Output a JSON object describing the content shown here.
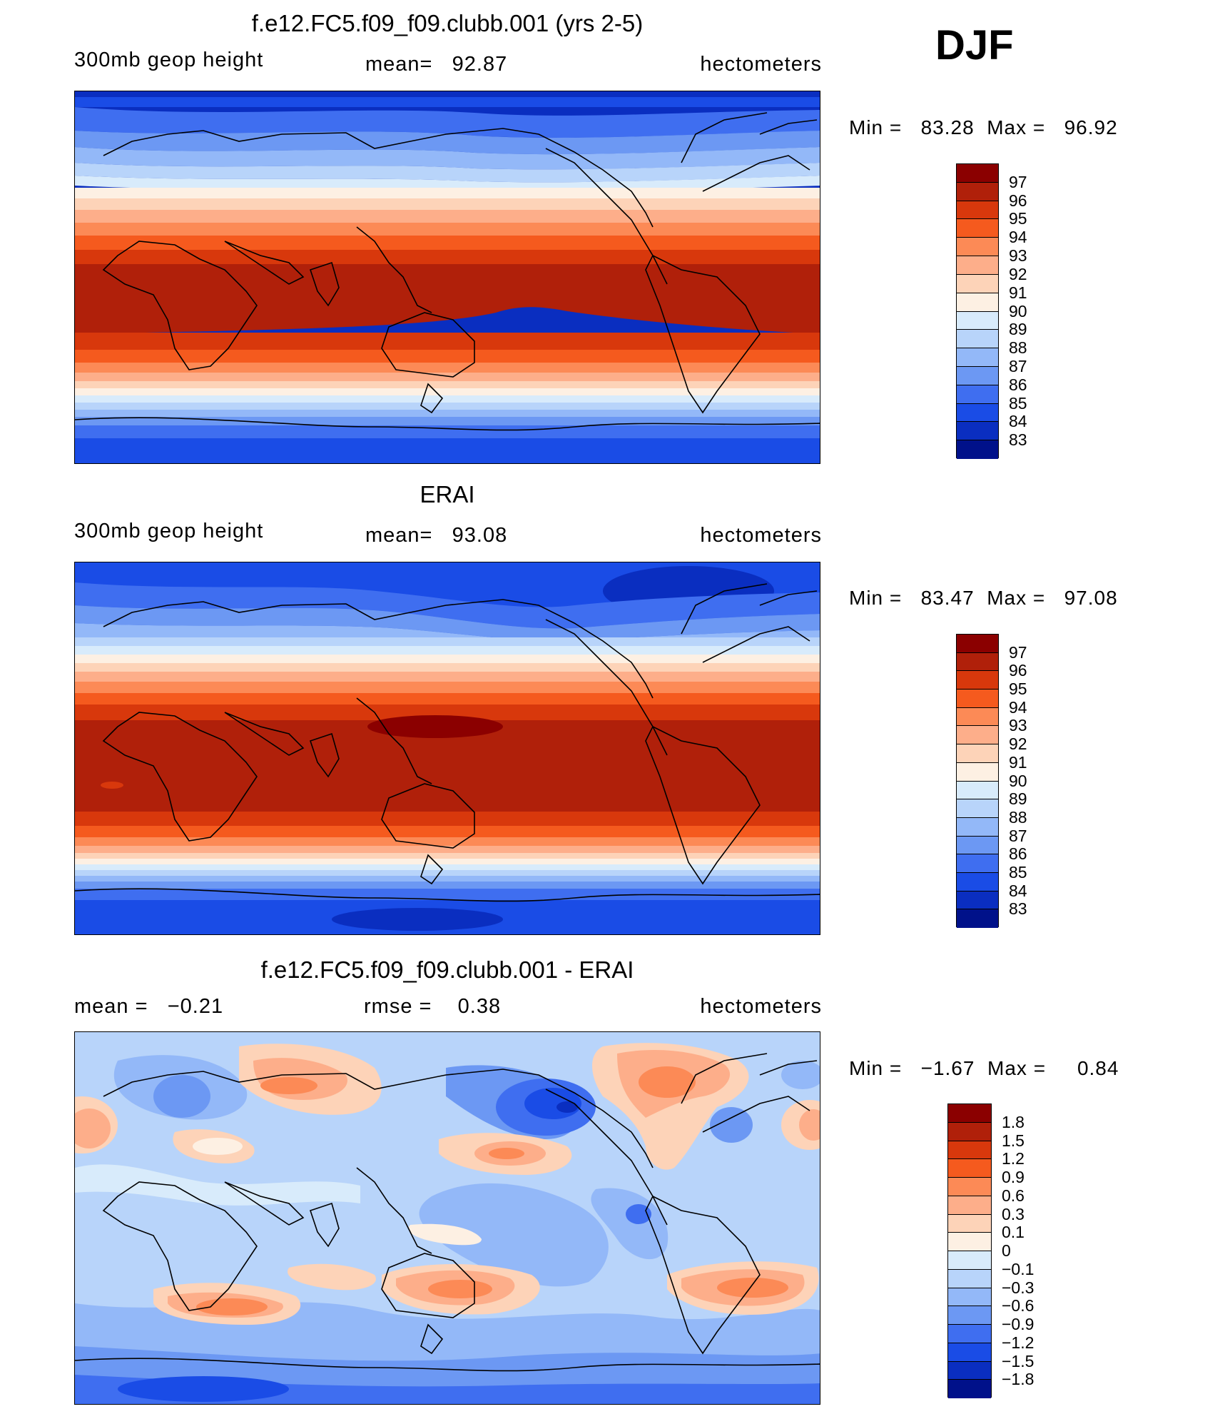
{
  "season": "DJF",
  "panels": [
    {
      "title": "f.e12.FC5.f09_f09.clubb.001 (yrs 2-5)",
      "left_label": "300mb  geop  height",
      "stat_label": "mean=",
      "stat_value": "92.87",
      "units": "hectometers",
      "min_label": "Min  =",
      "min_value": "83.28",
      "max_label": "Max  =",
      "max_value": "96.92",
      "colorbar_levels": [
        "97",
        "96",
        "95",
        "94",
        "93",
        "92",
        "91",
        "90",
        "89",
        "88",
        "87",
        "86",
        "85",
        "84",
        "83"
      ],
      "colors": [
        "#8b0000",
        "#b0200a",
        "#d8380c",
        "#f55a1e",
        "#fc8a56",
        "#fdae8a",
        "#fdd3b8",
        "#fdf0e3",
        "#d8ebfb",
        "#b8d4fa",
        "#93b8f8",
        "#6c98f3",
        "#3f6ef0",
        "#1a4ce6",
        "#0a2ec0",
        "#00118a"
      ]
    },
    {
      "title": "ERAI",
      "left_label": "300mb  geop  height",
      "stat_label": "mean=",
      "stat_value": "93.08",
      "units": "hectometers",
      "min_label": "Min  =",
      "min_value": "83.47",
      "max_label": "Max  =",
      "max_value": "97.08",
      "colorbar_levels": [
        "97",
        "96",
        "95",
        "94",
        "93",
        "92",
        "91",
        "90",
        "89",
        "88",
        "87",
        "86",
        "85",
        "84",
        "83"
      ],
      "colors": [
        "#8b0000",
        "#b0200a",
        "#d8380c",
        "#f55a1e",
        "#fc8a56",
        "#fdae8a",
        "#fdd3b8",
        "#fdf0e3",
        "#d8ebfb",
        "#b8d4fa",
        "#93b8f8",
        "#6c98f3",
        "#3f6ef0",
        "#1a4ce6",
        "#0a2ec0",
        "#00118a"
      ]
    },
    {
      "title": "f.e12.FC5.f09_f09.clubb.001 - ERAI",
      "left_label": "mean  =",
      "left_value": "−0.21",
      "stat_label": "rmse  =",
      "stat_value": "0.38",
      "units": "hectometers",
      "min_label": "Min  =",
      "min_value": "−1.67",
      "max_label": "Max  =",
      "max_value": "0.84",
      "colorbar_levels": [
        "1.8",
        "1.5",
        "1.2",
        "0.9",
        "0.6",
        "0.3",
        "0.1",
        "0",
        "−0.1",
        "−0.3",
        "−0.6",
        "−0.9",
        "−1.2",
        "−1.5",
        "−1.8"
      ],
      "colors": [
        "#8b0000",
        "#b0200a",
        "#d8380c",
        "#f55a1e",
        "#fc8a56",
        "#fdae8a",
        "#fdd3b8",
        "#fdf0e3",
        "#d8ebfb",
        "#b8d4fa",
        "#93b8f8",
        "#6c98f3",
        "#3f6ef0",
        "#1a4ce6",
        "#0a2ec0",
        "#00118a"
      ]
    }
  ]
}
